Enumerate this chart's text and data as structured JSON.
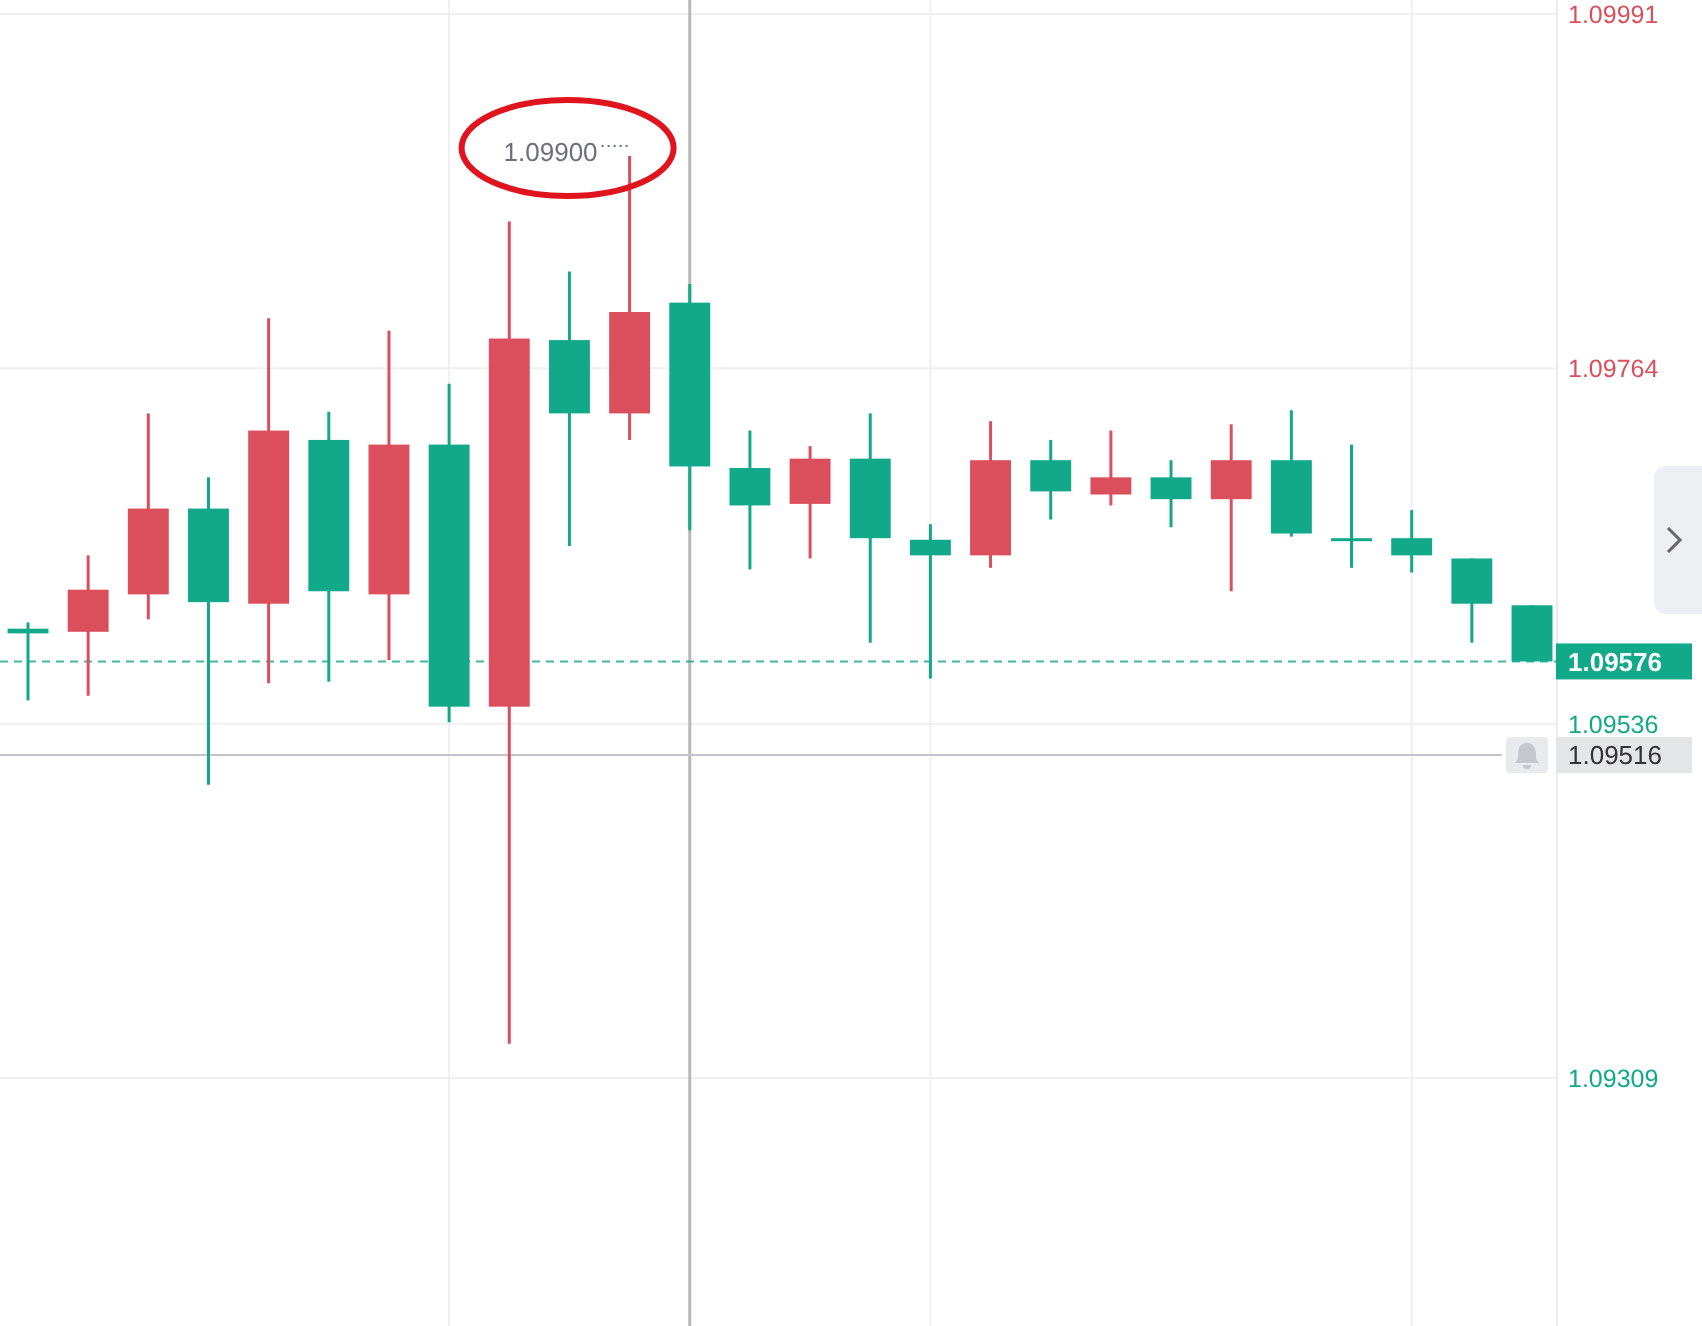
{
  "chart_data": {
    "type": "candlestick",
    "categories": [
      null,
      null,
      null,
      null,
      null,
      null,
      null,
      null,
      null,
      null,
      null,
      null,
      null,
      null,
      null,
      null,
      null,
      null,
      null,
      null,
      null,
      null,
      null,
      null,
      null,
      null
    ],
    "ohlc": [
      [
        1.09597,
        1.09601,
        1.09551,
        1.09594
      ],
      [
        1.09595,
        1.09644,
        1.09554,
        1.09622
      ],
      [
        1.09619,
        1.09735,
        1.09603,
        1.09674
      ],
      [
        1.09674,
        1.09694,
        1.09497,
        1.09614
      ],
      [
        1.09613,
        1.09796,
        1.09562,
        1.09724
      ],
      [
        1.09718,
        1.09736,
        1.09563,
        1.09621
      ],
      [
        1.09619,
        1.09788,
        1.09577,
        1.09715
      ],
      [
        1.09715,
        1.09754,
        1.09537,
        1.09547
      ],
      [
        1.09547,
        1.09858,
        1.09331,
        1.09783
      ],
      [
        1.09782,
        1.09826,
        1.0965,
        1.09735
      ],
      [
        1.09735,
        1.099,
        1.09718,
        1.098
      ],
      [
        1.09806,
        1.09818,
        1.0966,
        1.09701
      ],
      [
        1.097,
        1.09724,
        1.09635,
        1.09676
      ],
      [
        1.09677,
        1.09714,
        1.09642,
        1.09706
      ],
      [
        1.09706,
        1.09735,
        1.09588,
        1.09655
      ],
      [
        1.09654,
        1.09664,
        1.09565,
        1.09644
      ],
      [
        1.09644,
        1.0973,
        1.09636,
        1.09705
      ],
      [
        1.09705,
        1.09718,
        1.09667,
        1.09685
      ],
      [
        1.09683,
        1.09724,
        1.09676,
        1.09694
      ],
      [
        1.09694,
        1.09705,
        1.09662,
        1.0968
      ],
      [
        1.0968,
        1.09728,
        1.09621,
        1.09705
      ],
      [
        1.09705,
        1.09737,
        1.09656,
        1.09658
      ],
      [
        1.09655,
        1.09715,
        1.09636,
        1.09655
      ],
      [
        1.09655,
        1.09673,
        1.09633,
        1.09644
      ],
      [
        1.09642,
        1.09642,
        1.09588,
        1.09613
      ],
      [
        1.09612,
        1.09612,
        1.09576,
        1.09576
      ]
    ],
    "colors": [
      "#12a88a",
      "#da4f5b",
      "#da4f5b",
      "#12a88a",
      "#da4f5b",
      "#12a88a",
      "#da4f5b",
      "#12a88a",
      "#da4f5b",
      "#12a88a",
      "#da4f5b",
      "#12a88a",
      "#12a88a",
      "#da4f5b",
      "#12a88a",
      "#12a88a",
      "#da4f5b",
      "#12a88a",
      "#da4f5b",
      "#12a88a",
      "#da4f5b",
      "#12a88a",
      "#12a88a",
      "#12a88a",
      "#12a88a",
      "#12a88a"
    ],
    "ylim": [
      1.0915,
      1.1
    ],
    "yticks": [
      1.09309,
      1.09536,
      1.09764,
      1.09991
    ],
    "grid": true,
    "tick_labels": "y",
    "ref_lines": [
      {
        "axis": "y",
        "value": 1.09576,
        "label": "1.09576",
        "color": "#12a88a",
        "line_style": "dashed"
      },
      {
        "axis": "y",
        "value": 1.09516,
        "label": "1.09516",
        "color": "#c4c5ca"
      }
    ],
    "annotations": [
      "1.09900"
    ]
  }
}
